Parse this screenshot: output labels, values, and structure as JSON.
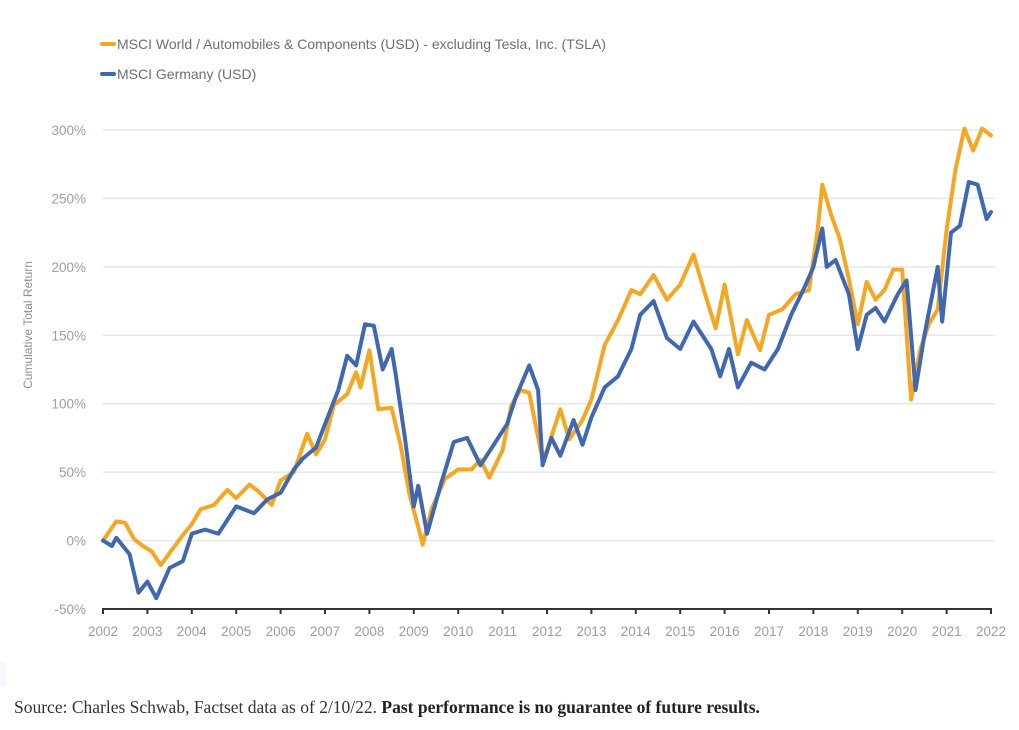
{
  "chart_data": {
    "type": "line",
    "title": "",
    "xlabel": "",
    "ylabel": "Cumulative Total Return",
    "xlim": [
      2002,
      2022
    ],
    "ylim": [
      -50,
      300
    ],
    "x_ticks": [
      "2002",
      "2003",
      "2004",
      "2005",
      "2006",
      "2007",
      "2008",
      "2009",
      "2010",
      "2011",
      "2012",
      "2013",
      "2014",
      "2015",
      "2016",
      "2017",
      "2018",
      "2019",
      "2020",
      "2021",
      "2022"
    ],
    "y_ticks": [
      {
        "value": 300,
        "label": "300%"
      },
      {
        "value": 250,
        "label": "250%"
      },
      {
        "value": 200,
        "label": "200%"
      },
      {
        "value": 150,
        "label": "150%"
      },
      {
        "value": 100,
        "label": "100%"
      },
      {
        "value": 50,
        "label": "50%"
      },
      {
        "value": 0,
        "label": "0%"
      },
      {
        "value": -50,
        "label": "-50%"
      }
    ],
    "grid": true,
    "legend_position": "top-left",
    "series": [
      {
        "name": "MSCI World / Automobiles & Components (USD) - excluding Tesla, Inc. (TSLA)",
        "color": "#f5a623",
        "points": [
          [
            2002.0,
            0
          ],
          [
            2002.3,
            14
          ],
          [
            2002.5,
            13
          ],
          [
            2002.7,
            1
          ],
          [
            2002.9,
            -4
          ],
          [
            2003.1,
            -8
          ],
          [
            2003.3,
            -18
          ],
          [
            2003.5,
            -9
          ],
          [
            2003.8,
            4
          ],
          [
            2004.0,
            12
          ],
          [
            2004.2,
            23
          ],
          [
            2004.5,
            26
          ],
          [
            2004.8,
            37
          ],
          [
            2005.0,
            31
          ],
          [
            2005.3,
            41
          ],
          [
            2005.5,
            36
          ],
          [
            2005.8,
            26
          ],
          [
            2006.0,
            44
          ],
          [
            2006.3,
            50
          ],
          [
            2006.6,
            78
          ],
          [
            2006.8,
            63
          ],
          [
            2007.0,
            74
          ],
          [
            2007.2,
            99
          ],
          [
            2007.5,
            107
          ],
          [
            2007.7,
            123
          ],
          [
            2007.8,
            112
          ],
          [
            2008.0,
            139
          ],
          [
            2008.2,
            96
          ],
          [
            2008.5,
            97
          ],
          [
            2008.7,
            70
          ],
          [
            2008.9,
            34
          ],
          [
            2009.1,
            10
          ],
          [
            2009.2,
            -3
          ],
          [
            2009.4,
            23
          ],
          [
            2009.7,
            45
          ],
          [
            2010.0,
            52
          ],
          [
            2010.3,
            52
          ],
          [
            2010.5,
            59
          ],
          [
            2010.7,
            46
          ],
          [
            2011.0,
            66
          ],
          [
            2011.2,
            99
          ],
          [
            2011.4,
            110
          ],
          [
            2011.6,
            108
          ],
          [
            2011.9,
            59
          ],
          [
            2012.0,
            66
          ],
          [
            2012.3,
            96
          ],
          [
            2012.5,
            74
          ],
          [
            2012.8,
            88
          ],
          [
            2013.0,
            103
          ],
          [
            2013.3,
            143
          ],
          [
            2013.6,
            161
          ],
          [
            2013.9,
            183
          ],
          [
            2014.1,
            180
          ],
          [
            2014.4,
            194
          ],
          [
            2014.7,
            176
          ],
          [
            2015.0,
            187
          ],
          [
            2015.3,
            209
          ],
          [
            2015.6,
            176
          ],
          [
            2015.8,
            155
          ],
          [
            2016.0,
            187
          ],
          [
            2016.3,
            136
          ],
          [
            2016.5,
            161
          ],
          [
            2016.8,
            139
          ],
          [
            2017.0,
            165
          ],
          [
            2017.3,
            169
          ],
          [
            2017.6,
            180
          ],
          [
            2017.9,
            183
          ],
          [
            2018.1,
            228
          ],
          [
            2018.2,
            260
          ],
          [
            2018.4,
            238
          ],
          [
            2018.6,
            220
          ],
          [
            2018.8,
            191
          ],
          [
            2019.0,
            158
          ],
          [
            2019.2,
            189
          ],
          [
            2019.4,
            176
          ],
          [
            2019.6,
            183
          ],
          [
            2019.8,
            198
          ],
          [
            2020.0,
            198
          ],
          [
            2020.2,
            103
          ],
          [
            2020.4,
            139
          ],
          [
            2020.6,
            158
          ],
          [
            2020.8,
            169
          ],
          [
            2021.0,
            227
          ],
          [
            2021.2,
            271
          ],
          [
            2021.4,
            301
          ],
          [
            2021.6,
            285
          ],
          [
            2021.8,
            301
          ],
          [
            2022.0,
            296
          ]
        ]
      },
      {
        "name": "MSCI Germany (USD)",
        "color": "#3f68b0",
        "points": [
          [
            2002.0,
            0
          ],
          [
            2002.2,
            -4
          ],
          [
            2002.3,
            2
          ],
          [
            2002.6,
            -10
          ],
          [
            2002.8,
            -38
          ],
          [
            2003.0,
            -30
          ],
          [
            2003.2,
            -42
          ],
          [
            2003.5,
            -20
          ],
          [
            2003.8,
            -15
          ],
          [
            2004.0,
            5
          ],
          [
            2004.3,
            8
          ],
          [
            2004.6,
            5
          ],
          [
            2004.8,
            15
          ],
          [
            2005.0,
            25
          ],
          [
            2005.4,
            20
          ],
          [
            2005.7,
            30
          ],
          [
            2006.0,
            35
          ],
          [
            2006.3,
            52
          ],
          [
            2006.5,
            60
          ],
          [
            2006.8,
            68
          ],
          [
            2007.0,
            85
          ],
          [
            2007.3,
            110
          ],
          [
            2007.5,
            135
          ],
          [
            2007.7,
            128
          ],
          [
            2007.9,
            158
          ],
          [
            2008.1,
            157
          ],
          [
            2008.3,
            125
          ],
          [
            2008.5,
            140
          ],
          [
            2008.6,
            120
          ],
          [
            2008.8,
            75
          ],
          [
            2009.0,
            25
          ],
          [
            2009.1,
            40
          ],
          [
            2009.3,
            5
          ],
          [
            2009.6,
            40
          ],
          [
            2009.9,
            72
          ],
          [
            2010.2,
            75
          ],
          [
            2010.5,
            55
          ],
          [
            2010.8,
            70
          ],
          [
            2011.1,
            85
          ],
          [
            2011.3,
            105
          ],
          [
            2011.6,
            128
          ],
          [
            2011.8,
            110
          ],
          [
            2011.9,
            55
          ],
          [
            2012.1,
            75
          ],
          [
            2012.3,
            62
          ],
          [
            2012.6,
            88
          ],
          [
            2012.8,
            70
          ],
          [
            2013.0,
            90
          ],
          [
            2013.3,
            112
          ],
          [
            2013.6,
            120
          ],
          [
            2013.9,
            140
          ],
          [
            2014.1,
            165
          ],
          [
            2014.4,
            175
          ],
          [
            2014.7,
            148
          ],
          [
            2015.0,
            140
          ],
          [
            2015.3,
            160
          ],
          [
            2015.7,
            140
          ],
          [
            2015.9,
            120
          ],
          [
            2016.1,
            140
          ],
          [
            2016.3,
            112
          ],
          [
            2016.6,
            130
          ],
          [
            2016.9,
            125
          ],
          [
            2017.2,
            140
          ],
          [
            2017.5,
            165
          ],
          [
            2017.8,
            185
          ],
          [
            2018.0,
            200
          ],
          [
            2018.2,
            228
          ],
          [
            2018.3,
            200
          ],
          [
            2018.5,
            205
          ],
          [
            2018.8,
            180
          ],
          [
            2019.0,
            140
          ],
          [
            2019.2,
            165
          ],
          [
            2019.4,
            170
          ],
          [
            2019.6,
            160
          ],
          [
            2019.9,
            180
          ],
          [
            2020.1,
            190
          ],
          [
            2020.3,
            110
          ],
          [
            2020.5,
            150
          ],
          [
            2020.8,
            200
          ],
          [
            2020.9,
            160
          ],
          [
            2021.1,
            225
          ],
          [
            2021.3,
            230
          ],
          [
            2021.5,
            262
          ],
          [
            2021.7,
            260
          ],
          [
            2021.9,
            235
          ],
          [
            2022.0,
            240
          ]
        ]
      }
    ]
  },
  "footer": {
    "source_text": "Source: Charles Schwab, Factset data as of 2/10/22. ",
    "disclaimer_text": "Past performance is no guarantee of future results."
  }
}
